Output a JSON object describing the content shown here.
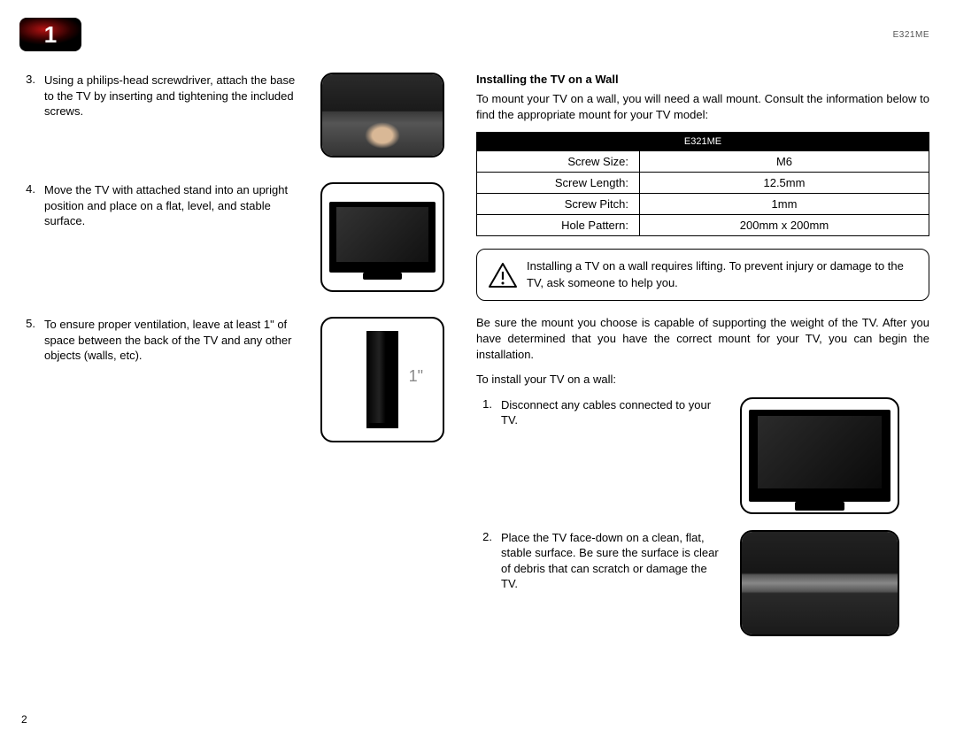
{
  "chapter": "1",
  "model": "E321ME",
  "left_steps": [
    {
      "n": "3.",
      "text": "Using a philips-head screwdriver, attach the base to the TV by inserting and tightening the included screws.",
      "thumb": "back",
      "h": "h96"
    },
    {
      "n": "4.",
      "text": "Move the TV with attached stand into an upright position and place on a flat, level, and stable surface.",
      "thumb": "front",
      "h": "h124"
    },
    {
      "n": "5.",
      "text": "To ensure proper ventilation, leave at least 1\" of space between the back of the TV and any other objects (walls, etc).",
      "thumb": "side",
      "h": "h142"
    }
  ],
  "one_inch_label": "1\"",
  "right": {
    "heading": "Installing the TV on a Wall",
    "intro": "To mount your TV on a wall, you will need a wall mount. Consult the information below to find the appropriate mount for your TV model:",
    "table_header": "E321ME",
    "specs": [
      {
        "k": "Screw Size:",
        "v": "M6"
      },
      {
        "k": "Screw Length:",
        "v": "12.5mm"
      },
      {
        "k": "Screw Pitch:",
        "v": "1mm"
      },
      {
        "k": "Hole Pattern:",
        "v": "200mm x 200mm"
      }
    ],
    "warning": "Installing a TV on a wall requires lifting. To prevent injury or damage to the TV, ask someone to help you.",
    "para2": "Be sure the mount you choose is capable of supporting the weight of the TV. After you have determined that you have the correct mount for your TV, you can begin the installation.",
    "para3": "To install your TV on a wall:",
    "steps": [
      {
        "n": "1.",
        "text": "Disconnect any cables connected to your TV.",
        "thumb": "front-lg",
        "h": "h132"
      },
      {
        "n": "2.",
        "text": "Place the TV face-down on a clean, flat, stable surface. Be sure the surface is clear of debris that can scratch or damage the TV.",
        "thumb": "back-lg",
        "h": "h120"
      }
    ]
  },
  "page_number": "2"
}
